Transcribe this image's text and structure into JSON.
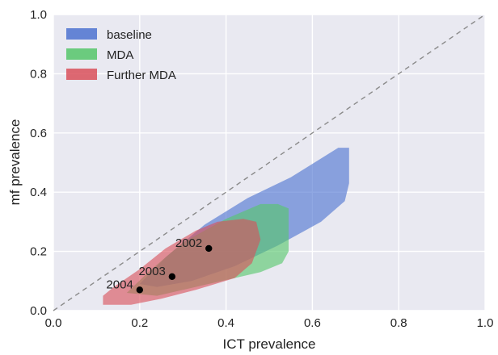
{
  "chart_data": {
    "type": "area",
    "xlabel": "ICT prevalence",
    "ylabel": "mf prevalence",
    "xlim": [
      0.0,
      1.0
    ],
    "ylim": [
      0.0,
      1.0
    ],
    "xticks": [
      "0.0",
      "0.2",
      "0.4",
      "0.6",
      "0.8",
      "1.0"
    ],
    "yticks": [
      "0.0",
      "0.2",
      "0.4",
      "0.6",
      "0.8",
      "1.0"
    ],
    "grid": true,
    "legend_position": "top-left",
    "reference_line": {
      "style": "dashed",
      "from": [
        0,
        0
      ],
      "to": [
        1,
        1
      ],
      "color": "#8a8a8a"
    },
    "series": [
      {
        "name": "baseline",
        "color": "#4c72d0",
        "polygon": [
          [
            0.2,
            0.09
          ],
          [
            0.26,
            0.18
          ],
          [
            0.35,
            0.29
          ],
          [
            0.45,
            0.38
          ],
          [
            0.55,
            0.45
          ],
          [
            0.66,
            0.55
          ],
          [
            0.685,
            0.55
          ],
          [
            0.685,
            0.43
          ],
          [
            0.675,
            0.37
          ],
          [
            0.62,
            0.3
          ],
          [
            0.52,
            0.22
          ],
          [
            0.42,
            0.15
          ],
          [
            0.32,
            0.1
          ],
          [
            0.24,
            0.08
          ]
        ]
      },
      {
        "name": "MDA",
        "color": "#55c66a",
        "polygon": [
          [
            0.17,
            0.06
          ],
          [
            0.22,
            0.13
          ],
          [
            0.3,
            0.23
          ],
          [
            0.4,
            0.31
          ],
          [
            0.48,
            0.36
          ],
          [
            0.52,
            0.36
          ],
          [
            0.545,
            0.345
          ],
          [
            0.545,
            0.2
          ],
          [
            0.53,
            0.16
          ],
          [
            0.48,
            0.13
          ],
          [
            0.42,
            0.11
          ],
          [
            0.33,
            0.08
          ],
          [
            0.24,
            0.05
          ]
        ]
      },
      {
        "name": "Further MDA",
        "color": "#d9505a",
        "polygon": [
          [
            0.115,
            0.02
          ],
          [
            0.115,
            0.05
          ],
          [
            0.14,
            0.08
          ],
          [
            0.2,
            0.14
          ],
          [
            0.26,
            0.21
          ],
          [
            0.33,
            0.27
          ],
          [
            0.38,
            0.3
          ],
          [
            0.44,
            0.31
          ],
          [
            0.47,
            0.3
          ],
          [
            0.48,
            0.24
          ],
          [
            0.46,
            0.16
          ],
          [
            0.42,
            0.11
          ],
          [
            0.33,
            0.07
          ],
          [
            0.25,
            0.04
          ],
          [
            0.18,
            0.02
          ]
        ]
      }
    ],
    "points": [
      {
        "label": "2002",
        "x": 0.36,
        "y": 0.21
      },
      {
        "label": "2003",
        "x": 0.275,
        "y": 0.115
      },
      {
        "label": "2004",
        "x": 0.2,
        "y": 0.07
      }
    ]
  }
}
